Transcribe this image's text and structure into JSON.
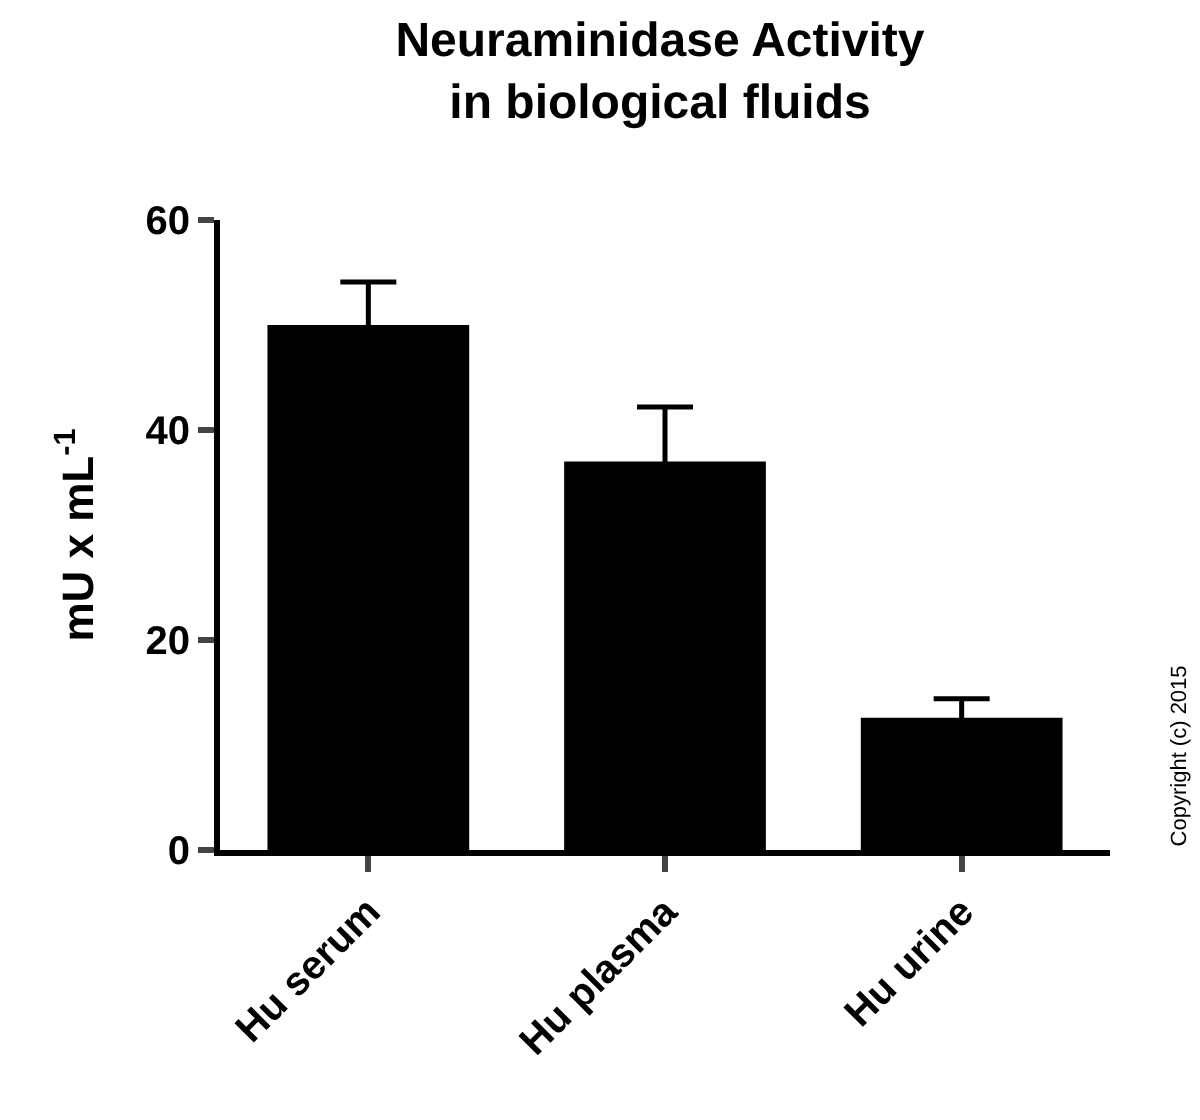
{
  "chart_data": {
    "type": "bar",
    "title": "Neuraminidase Activity\nin biological fluids",
    "ylabel": "mU x mL$^{-1}$",
    "categories": [
      "Hu serum",
      "Hu plasma",
      "Hu urine"
    ],
    "values": [
      50,
      37,
      12.6
    ],
    "errors": [
      4.1,
      5.2,
      1.8
    ],
    "color": "#000000",
    "ylim": [
      0,
      60
    ],
    "yticks": [
      0,
      20,
      40,
      60
    ],
    "annotations": [
      "Copyright (c) 2015"
    ]
  }
}
